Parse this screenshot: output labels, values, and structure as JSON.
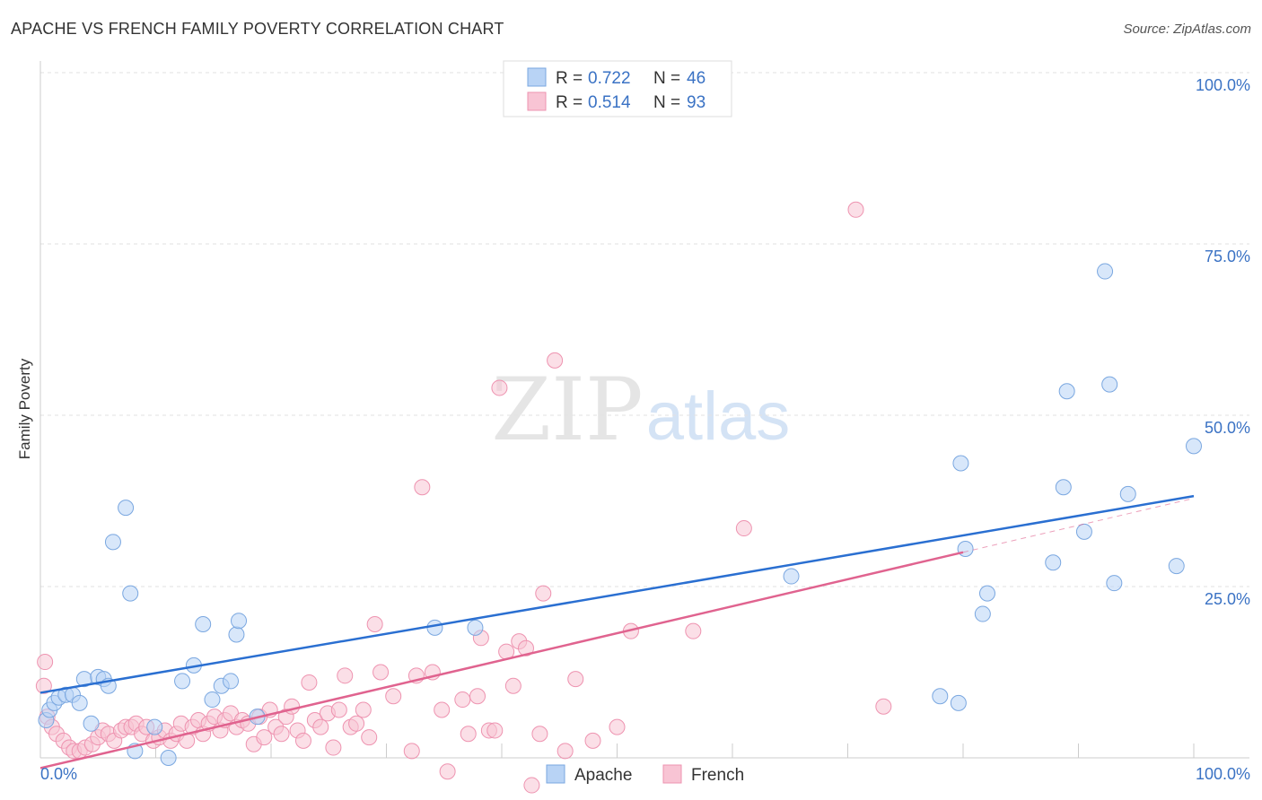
{
  "header": {
    "title": "APACHE VS FRENCH FAMILY POVERTY CORRELATION CHART",
    "source": "Source: ZipAtlas.com"
  },
  "watermark": {
    "zip": "ZIP",
    "atlas": "atlas"
  },
  "colors": {
    "apache_fill": "#b8d3f5",
    "apache_stroke": "#7aa7e0",
    "apache_line": "#2a6fd1",
    "french_fill": "#f8c4d4",
    "french_stroke": "#ee93b0",
    "french_line": "#e0638f",
    "axis_text": "#3a72c4",
    "grid": "#e2e2e2"
  },
  "legend": {
    "rows": [
      {
        "r_label": "R = ",
        "r_value": "0.722",
        "n_label": "N = ",
        "n_value": "46"
      },
      {
        "r_label": "R = ",
        "r_value": "0.514",
        "n_label": "N = ",
        "n_value": "93"
      }
    ]
  },
  "bottom_legend": {
    "apache": "Apache",
    "french": "French"
  },
  "chart_data": {
    "type": "scatter",
    "title": "APACHE VS FRENCH FAMILY POVERTY CORRELATION CHART",
    "xlabel": "",
    "ylabel": "Family Poverty",
    "xlim": [
      0,
      100
    ],
    "ylim": [
      0,
      100
    ],
    "x_tick_labels": [
      "0.0%",
      "100.0%"
    ],
    "y_tick_labels": [
      "100.0%",
      "75.0%",
      "50.0%",
      "25.0%"
    ],
    "y_tick_values": [
      100,
      75,
      50,
      25
    ],
    "grid": true,
    "legend_position": "top-center",
    "series": [
      {
        "name": "Apache",
        "r": 0.722,
        "n": 46,
        "trend": {
          "x": [
            0,
            100
          ],
          "y": [
            9.5,
            38.2
          ]
        },
        "points": [
          [
            0.5,
            5.5
          ],
          [
            0.8,
            7.0
          ],
          [
            1.2,
            8.0
          ],
          [
            1.6,
            8.8
          ],
          [
            2.2,
            9.2
          ],
          [
            2.8,
            9.2
          ],
          [
            3.4,
            8.0
          ],
          [
            3.8,
            11.5
          ],
          [
            4.4,
            5.0
          ],
          [
            5.0,
            11.8
          ],
          [
            5.5,
            11.5
          ],
          [
            5.9,
            10.5
          ],
          [
            6.3,
            31.5
          ],
          [
            7.4,
            36.5
          ],
          [
            7.8,
            24.0
          ],
          [
            8.2,
            1.0
          ],
          [
            9.9,
            4.5
          ],
          [
            11.1,
            0.0
          ],
          [
            12.3,
            11.2
          ],
          [
            13.3,
            13.5
          ],
          [
            14.1,
            19.5
          ],
          [
            14.9,
            8.5
          ],
          [
            15.7,
            10.5
          ],
          [
            16.5,
            11.2
          ],
          [
            17.0,
            18.0
          ],
          [
            17.2,
            20.0
          ],
          [
            18.8,
            6.0
          ],
          [
            34.2,
            19.0
          ],
          [
            37.7,
            19.0
          ],
          [
            65.1,
            26.5
          ],
          [
            78.0,
            9.0
          ],
          [
            79.6,
            8.0
          ],
          [
            79.8,
            43.0
          ],
          [
            80.2,
            30.5
          ],
          [
            81.7,
            21.0
          ],
          [
            82.1,
            24.0
          ],
          [
            87.8,
            28.5
          ],
          [
            88.7,
            39.5
          ],
          [
            89.0,
            53.5
          ],
          [
            90.5,
            33.0
          ],
          [
            92.3,
            71.0
          ],
          [
            92.7,
            54.5
          ],
          [
            93.1,
            25.5
          ],
          [
            94.3,
            38.5
          ],
          [
            98.5,
            28.0
          ],
          [
            100.0,
            45.5
          ]
        ]
      },
      {
        "name": "French",
        "r": 0.514,
        "n": 93,
        "trend": {
          "x": [
            0,
            80
          ],
          "y": [
            -1.5,
            30.0
          ]
        },
        "points": [
          [
            0.3,
            10.5
          ],
          [
            0.6,
            6.0
          ],
          [
            1.0,
            4.5
          ],
          [
            1.4,
            3.5
          ],
          [
            2.0,
            2.5
          ],
          [
            2.5,
            1.5
          ],
          [
            2.9,
            1.0
          ],
          [
            3.4,
            1.0
          ],
          [
            3.9,
            1.5
          ],
          [
            4.5,
            2.0
          ],
          [
            5.0,
            3.0
          ],
          [
            5.4,
            4.0
          ],
          [
            5.9,
            3.5
          ],
          [
            6.4,
            2.5
          ],
          [
            7.0,
            4.0
          ],
          [
            7.4,
            4.5
          ],
          [
            7.9,
            4.5
          ],
          [
            8.3,
            5.0
          ],
          [
            8.8,
            3.5
          ],
          [
            9.2,
            4.5
          ],
          [
            9.8,
            2.5
          ],
          [
            10.3,
            3.0
          ],
          [
            10.8,
            4.0
          ],
          [
            11.3,
            2.5
          ],
          [
            11.8,
            3.5
          ],
          [
            12.2,
            5.0
          ],
          [
            12.7,
            2.5
          ],
          [
            13.2,
            4.5
          ],
          [
            13.7,
            5.5
          ],
          [
            14.1,
            3.5
          ],
          [
            14.6,
            5.0
          ],
          [
            15.1,
            6.0
          ],
          [
            15.6,
            4.0
          ],
          [
            16.0,
            5.5
          ],
          [
            16.5,
            6.5
          ],
          [
            17.0,
            4.5
          ],
          [
            17.5,
            5.5
          ],
          [
            18.0,
            5.0
          ],
          [
            18.5,
            2.0
          ],
          [
            19.0,
            6.0
          ],
          [
            19.4,
            3.0
          ],
          [
            19.9,
            7.0
          ],
          [
            20.4,
            4.5
          ],
          [
            20.9,
            3.5
          ],
          [
            21.3,
            6.0
          ],
          [
            21.8,
            7.5
          ],
          [
            22.3,
            4.0
          ],
          [
            22.8,
            2.5
          ],
          [
            23.3,
            11.0
          ],
          [
            23.8,
            5.5
          ],
          [
            24.3,
            4.5
          ],
          [
            24.9,
            6.5
          ],
          [
            25.4,
            1.5
          ],
          [
            25.9,
            7.0
          ],
          [
            26.4,
            12.0
          ],
          [
            26.9,
            4.5
          ],
          [
            27.4,
            5.0
          ],
          [
            28.0,
            7.0
          ],
          [
            28.5,
            3.0
          ],
          [
            29.0,
            19.5
          ],
          [
            29.5,
            12.5
          ],
          [
            30.6,
            9.0
          ],
          [
            32.2,
            1.0
          ],
          [
            32.6,
            12.0
          ],
          [
            33.1,
            39.5
          ],
          [
            34.0,
            12.5
          ],
          [
            34.8,
            7.0
          ],
          [
            35.3,
            -2.0
          ],
          [
            36.6,
            8.5
          ],
          [
            37.1,
            3.5
          ],
          [
            37.9,
            9.0
          ],
          [
            38.2,
            17.5
          ],
          [
            38.9,
            4.0
          ],
          [
            39.4,
            4.0
          ],
          [
            39.8,
            54.0
          ],
          [
            40.4,
            15.5
          ],
          [
            41.0,
            10.5
          ],
          [
            41.5,
            17.0
          ],
          [
            42.1,
            16.0
          ],
          [
            42.6,
            -4.0
          ],
          [
            43.3,
            3.5
          ],
          [
            43.6,
            24.0
          ],
          [
            44.6,
            58.0
          ],
          [
            45.5,
            1.0
          ],
          [
            46.4,
            11.5
          ],
          [
            47.9,
            2.5
          ],
          [
            50.0,
            4.5
          ],
          [
            51.2,
            18.5
          ],
          [
            56.6,
            18.5
          ],
          [
            61.0,
            33.5
          ],
          [
            70.7,
            80.0
          ],
          [
            73.1,
            7.5
          ],
          [
            0.4,
            14.0
          ]
        ]
      }
    ]
  }
}
